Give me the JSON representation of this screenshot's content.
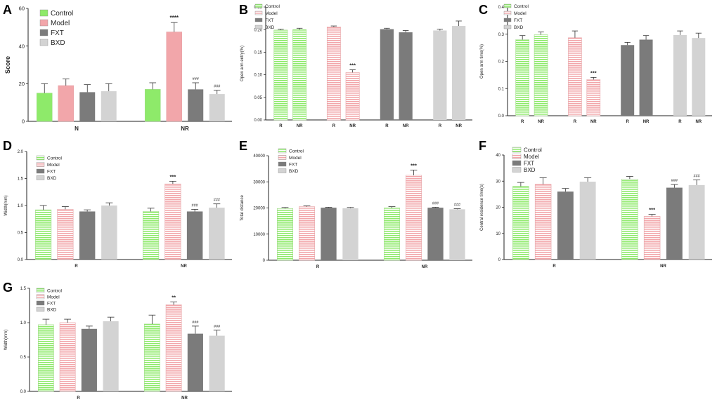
{
  "colors": {
    "Control": "#8eea6a",
    "Model": "#f2a6aa",
    "FXT": "#7b7b7b",
    "BXD": "#d3d3d3",
    "axis": "#222222"
  },
  "chart_data": [
    {
      "id": "A",
      "letter": "A",
      "type": "bar",
      "title": "",
      "xlabel": "",
      "ylabel": "Score",
      "ylim": [
        0,
        60
      ],
      "yticks": [
        0,
        20,
        40,
        60
      ],
      "tick_decimals": 0,
      "groups": [
        "N",
        "NR"
      ],
      "series_per_group": 4,
      "pattern": "solid",
      "legend_position": "top-left",
      "legend": [
        "Control",
        "Model",
        "FXT",
        "BXD"
      ],
      "bars": [
        {
          "group": "N",
          "series": "Control",
          "value": 15,
          "err": 5,
          "label": ""
        },
        {
          "group": "N",
          "series": "Model",
          "value": 19,
          "err": 3.5,
          "label": ""
        },
        {
          "group": "N",
          "series": "FXT",
          "value": 15.5,
          "err": 4,
          "label": ""
        },
        {
          "group": "N",
          "series": "BXD",
          "value": 16,
          "err": 4,
          "label": ""
        },
        {
          "group": "NR",
          "series": "Control",
          "value": 17,
          "err": 3.5,
          "label": ""
        },
        {
          "group": "NR",
          "series": "Model",
          "value": 47.5,
          "err": 5,
          "label": "****"
        },
        {
          "group": "NR",
          "series": "FXT",
          "value": 17,
          "err": 3.5,
          "label": "###"
        },
        {
          "group": "NR",
          "series": "BXD",
          "value": 14.5,
          "err": 2,
          "label": "###"
        }
      ]
    },
    {
      "id": "B",
      "letter": "B",
      "type": "bar",
      "title": "",
      "xlabel": "",
      "ylabel": "Open arm entry(%)",
      "ylim": [
        0,
        0.25
      ],
      "yticks": [
        0,
        0.05,
        0.1,
        0.15,
        0.2,
        0.25
      ],
      "tick_decimals": 2,
      "groups": [
        "R",
        "NR",
        "R",
        "NR",
        "R",
        "NR",
        "R",
        "NR"
      ],
      "series_per_group": 1,
      "pattern": "lines",
      "legend_position": "top-left",
      "legend": [
        "Control",
        "Model",
        "FXT",
        "BXD"
      ],
      "bars": [
        {
          "group": "R",
          "series": "Control",
          "value": 0.199,
          "err": 0.002,
          "label": ""
        },
        {
          "group": "NR",
          "series": "Control",
          "value": 0.2,
          "err": 0.003,
          "label": ""
        },
        {
          "group": "R",
          "series": "Model",
          "value": 0.206,
          "err": 0.002,
          "label": ""
        },
        {
          "group": "NR",
          "series": "Model",
          "value": 0.105,
          "err": 0.006,
          "label": "***"
        },
        {
          "group": "R",
          "series": "FXT",
          "value": 0.201,
          "err": 0.002,
          "label": ""
        },
        {
          "group": "NR",
          "series": "FXT",
          "value": 0.194,
          "err": 0.004,
          "label": ""
        },
        {
          "group": "R",
          "series": "BXD",
          "value": 0.198,
          "err": 0.003,
          "label": ""
        },
        {
          "group": "NR",
          "series": "BXD",
          "value": 0.208,
          "err": 0.011,
          "label": ""
        }
      ]
    },
    {
      "id": "C",
      "letter": "C",
      "type": "bar",
      "title": "",
      "xlabel": "",
      "ylabel": "Open arm time(%)",
      "ylim": [
        0,
        0.4
      ],
      "yticks": [
        0,
        0.1,
        0.2,
        0.3,
        0.4
      ],
      "tick_decimals": 1,
      "groups": [
        "R",
        "NR",
        "R",
        "NR",
        "R",
        "NR",
        "R",
        "NR"
      ],
      "series_per_group": 1,
      "pattern": "lines",
      "legend_position": "top-left",
      "legend": [
        "Control",
        "Model",
        "FXT",
        "BXD"
      ],
      "bars": [
        {
          "group": "R",
          "series": "Control",
          "value": 0.28,
          "err": 0.015,
          "label": ""
        },
        {
          "group": "NR",
          "series": "Control",
          "value": 0.298,
          "err": 0.01,
          "label": ""
        },
        {
          "group": "R",
          "series": "Model",
          "value": 0.287,
          "err": 0.025,
          "label": ""
        },
        {
          "group": "NR",
          "series": "Model",
          "value": 0.133,
          "err": 0.008,
          "label": "***"
        },
        {
          "group": "R",
          "series": "FXT",
          "value": 0.26,
          "err": 0.01,
          "label": ""
        },
        {
          "group": "NR",
          "series": "FXT",
          "value": 0.28,
          "err": 0.015,
          "label": ""
        },
        {
          "group": "R",
          "series": "BXD",
          "value": 0.297,
          "err": 0.015,
          "label": ""
        },
        {
          "group": "NR",
          "series": "BXD",
          "value": 0.286,
          "err": 0.018,
          "label": ""
        }
      ]
    },
    {
      "id": "D",
      "letter": "D",
      "type": "bar",
      "title": "",
      "xlabel": "",
      "ylabel": "Width(mm)",
      "ylim": [
        0,
        2.0
      ],
      "yticks": [
        0,
        0.5,
        1.0,
        1.5,
        2.0
      ],
      "tick_decimals": 1,
      "groups": [
        "R",
        "NR"
      ],
      "series_per_group": 4,
      "pattern": "lines",
      "legend_position": "top-left",
      "legend": [
        "Control",
        "Model",
        "FXT",
        "BXD"
      ],
      "bars": [
        {
          "group": "R",
          "series": "Control",
          "value": 0.92,
          "err": 0.08,
          "label": ""
        },
        {
          "group": "R",
          "series": "Model",
          "value": 0.93,
          "err": 0.05,
          "label": ""
        },
        {
          "group": "R",
          "series": "FXT",
          "value": 0.89,
          "err": 0.03,
          "label": ""
        },
        {
          "group": "R",
          "series": "BXD",
          "value": 1.0,
          "err": 0.05,
          "label": ""
        },
        {
          "group": "NR",
          "series": "Control",
          "value": 0.89,
          "err": 0.06,
          "label": ""
        },
        {
          "group": "NR",
          "series": "Model",
          "value": 1.4,
          "err": 0.05,
          "label": "***"
        },
        {
          "group": "NR",
          "series": "FXT",
          "value": 0.89,
          "err": 0.04,
          "label": "###"
        },
        {
          "group": "NR",
          "series": "BXD",
          "value": 0.96,
          "err": 0.07,
          "label": "###"
        }
      ]
    },
    {
      "id": "E",
      "letter": "E",
      "type": "bar",
      "title": "",
      "xlabel": "",
      "ylabel": "Total distance",
      "ylim": [
        0,
        40000
      ],
      "yticks": [
        0,
        10000,
        20000,
        30000,
        40000
      ],
      "tick_decimals": 0,
      "groups": [
        "R",
        "NR"
      ],
      "series_per_group": 4,
      "pattern": "lines",
      "legend_position": "top-left",
      "legend": [
        "Control",
        "Model",
        "FXT",
        "BXD"
      ],
      "bars": [
        {
          "group": "R",
          "series": "Control",
          "value": 19800,
          "err": 400,
          "label": ""
        },
        {
          "group": "R",
          "series": "Model",
          "value": 20500,
          "err": 300,
          "label": ""
        },
        {
          "group": "R",
          "series": "FXT",
          "value": 20100,
          "err": 200,
          "label": ""
        },
        {
          "group": "R",
          "series": "BXD",
          "value": 19900,
          "err": 300,
          "label": ""
        },
        {
          "group": "NR",
          "series": "Control",
          "value": 20000,
          "err": 500,
          "label": ""
        },
        {
          "group": "NR",
          "series": "Model",
          "value": 32500,
          "err": 2000,
          "label": "***"
        },
        {
          "group": "NR",
          "series": "FXT",
          "value": 20100,
          "err": 200,
          "label": "###"
        },
        {
          "group": "NR",
          "series": "BXD",
          "value": 19500,
          "err": 200,
          "label": "###"
        }
      ]
    },
    {
      "id": "F",
      "letter": "F",
      "type": "bar",
      "title": "",
      "xlabel": "",
      "ylabel": "Central residence time(s)",
      "ylim": [
        0,
        40
      ],
      "yticks": [
        0,
        10,
        20,
        30,
        40
      ],
      "tick_decimals": 0,
      "groups": [
        "R",
        "NR"
      ],
      "series_per_group": 4,
      "pattern": "lines",
      "legend_position": "top-left",
      "legend": [
        "Control",
        "Model",
        "FXT",
        "BXD"
      ],
      "bars": [
        {
          "group": "R",
          "series": "Control",
          "value": 28,
          "err": 1.5,
          "label": ""
        },
        {
          "group": "R",
          "series": "Model",
          "value": 28.8,
          "err": 2.5,
          "label": ""
        },
        {
          "group": "R",
          "series": "FXT",
          "value": 26,
          "err": 1.2,
          "label": ""
        },
        {
          "group": "R",
          "series": "BXD",
          "value": 29.8,
          "err": 1.5,
          "label": ""
        },
        {
          "group": "NR",
          "series": "Control",
          "value": 30.8,
          "err": 1.0,
          "label": ""
        },
        {
          "group": "NR",
          "series": "Model",
          "value": 16.5,
          "err": 0.8,
          "label": "***"
        },
        {
          "group": "NR",
          "series": "FXT",
          "value": 27.5,
          "err": 1.2,
          "label": "###"
        },
        {
          "group": "NR",
          "series": "BXD",
          "value": 28.5,
          "err": 2.0,
          "label": "###"
        }
      ]
    },
    {
      "id": "G",
      "letter": "G",
      "type": "bar",
      "title": "",
      "xlabel": "",
      "ylabel": "Width(mm)",
      "ylim": [
        0,
        1.5
      ],
      "yticks": [
        0,
        0.5,
        1.0,
        1.5
      ],
      "tick_decimals": 1,
      "groups": [
        "R",
        "NR"
      ],
      "series_per_group": 4,
      "pattern": "lines",
      "legend_position": "top-left",
      "legend": [
        "Control",
        "Model",
        "FXT",
        "BXD"
      ],
      "bars": [
        {
          "group": "R",
          "series": "Control",
          "value": 0.97,
          "err": 0.08,
          "label": ""
        },
        {
          "group": "R",
          "series": "Model",
          "value": 1.0,
          "err": 0.05,
          "label": ""
        },
        {
          "group": "R",
          "series": "FXT",
          "value": 0.91,
          "err": 0.04,
          "label": ""
        },
        {
          "group": "R",
          "series": "BXD",
          "value": 1.02,
          "err": 0.06,
          "label": ""
        },
        {
          "group": "NR",
          "series": "Control",
          "value": 0.98,
          "err": 0.13,
          "label": ""
        },
        {
          "group": "NR",
          "series": "Model",
          "value": 1.26,
          "err": 0.04,
          "label": "**"
        },
        {
          "group": "NR",
          "series": "FXT",
          "value": 0.84,
          "err": 0.11,
          "label": "###"
        },
        {
          "group": "NR",
          "series": "BXD",
          "value": 0.81,
          "err": 0.08,
          "label": "###"
        }
      ]
    }
  ]
}
